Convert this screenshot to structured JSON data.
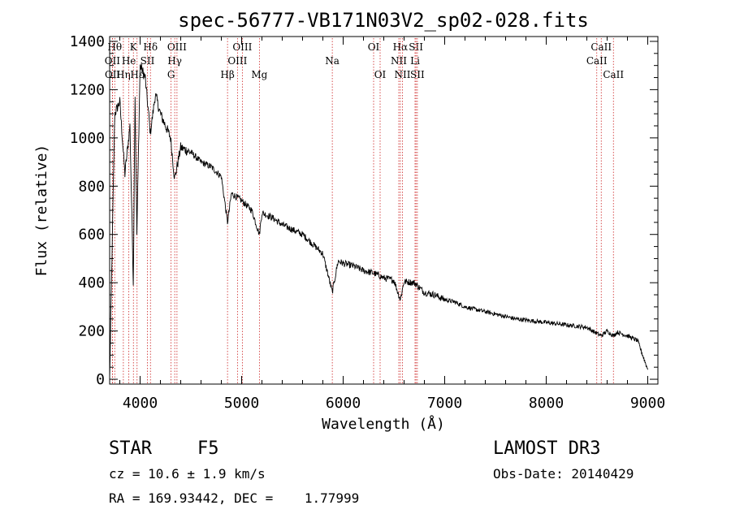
{
  "chart_data": {
    "type": "line",
    "title": "spec-56777-VB171N03V2_sp02-028.fits",
    "xlabel": "Wavelength (Å)",
    "ylabel": "Flux (relative)",
    "xlim": [
      3700,
      9100
    ],
    "ylim": [
      -20,
      1420
    ],
    "xticks": [
      4000,
      5000,
      6000,
      7000,
      8000,
      9000
    ],
    "yticks": [
      0,
      200,
      400,
      600,
      800,
      1000,
      1200,
      1400
    ],
    "grid": false,
    "x": [
      3700,
      3750,
      3800,
      3850,
      3900,
      3933,
      3950,
      3968,
      4000,
      4050,
      4101,
      4150,
      4200,
      4250,
      4300,
      4340,
      4400,
      4500,
      4600,
      4700,
      4800,
      4861,
      4900,
      5000,
      5100,
      5175,
      5200,
      5300,
      5400,
      5500,
      5600,
      5700,
      5800,
      5893,
      5950,
      6000,
      6100,
      6200,
      6300,
      6400,
      6500,
      6563,
      6600,
      6700,
      6800,
      6900,
      7000,
      7100,
      7200,
      7300,
      7400,
      7500,
      7600,
      7700,
      7800,
      7900,
      8000,
      8100,
      8200,
      8300,
      8400,
      8498,
      8542,
      8600,
      8662,
      8700,
      8800,
      8900,
      8950,
      9000
    ],
    "y": [
      0,
      1100,
      1150,
      850,
      1050,
      400,
      1180,
      600,
      1300,
      1250,
      1020,
      1180,
      1100,
      1050,
      1000,
      830,
      960,
      940,
      900,
      880,
      840,
      650,
      770,
      740,
      700,
      600,
      690,
      670,
      640,
      620,
      600,
      560,
      520,
      360,
      490,
      480,
      470,
      450,
      440,
      420,
      410,
      330,
      405,
      400,
      360,
      350,
      330,
      320,
      300,
      290,
      280,
      270,
      260,
      250,
      245,
      240,
      235,
      230,
      225,
      220,
      215,
      190,
      180,
      200,
      180,
      195,
      180,
      160,
      100,
      40
    ],
    "lines": [
      {
        "label": "Hθ",
        "x": 3750,
        "row": 0
      },
      {
        "label": "OII",
        "x": 3727,
        "row": 1
      },
      {
        "label": "OII",
        "x": 3729,
        "row": 2
      },
      {
        "label": "Hη",
        "x": 3835,
        "row": 2
      },
      {
        "label": "He",
        "x": 3889,
        "row": 1
      },
      {
        "label": "K",
        "x": 3934,
        "row": 0
      },
      {
        "label": "SII",
        "x": 4072,
        "row": 1
      },
      {
        "label": "Hε",
        "x": 3970,
        "row": 2
      },
      {
        "label": "Hδ",
        "x": 4102,
        "row": 0
      },
      {
        "label": "OIII",
        "x": 4363,
        "row": 0
      },
      {
        "label": "Hγ",
        "x": 4341,
        "row": 1
      },
      {
        "label": "G",
        "x": 4305,
        "row": 2
      },
      {
        "label": "Hβ",
        "x": 4861,
        "row": 2
      },
      {
        "label": "OIII",
        "x": 5007,
        "row": 0
      },
      {
        "label": "OIII",
        "x": 4959,
        "row": 1
      },
      {
        "label": "Mg",
        "x": 5175,
        "row": 2
      },
      {
        "label": "Na",
        "x": 5893,
        "row": 1
      },
      {
        "label": "OI",
        "x": 6300,
        "row": 0
      },
      {
        "label": "OI",
        "x": 6364,
        "row": 2
      },
      {
        "label": "Hα",
        "x": 6563,
        "row": 0
      },
      {
        "label": "NII",
        "x": 6548,
        "row": 1
      },
      {
        "label": "NII",
        "x": 6584,
        "row": 2
      },
      {
        "label": "SII",
        "x": 6717,
        "row": 0
      },
      {
        "label": "Li",
        "x": 6708,
        "row": 1
      },
      {
        "label": "SII",
        "x": 6731,
        "row": 2
      },
      {
        "label": "CaII",
        "x": 8542,
        "row": 0
      },
      {
        "label": "CaII",
        "x": 8498,
        "row": 1
      },
      {
        "label": "CaII",
        "x": 8662,
        "row": 2
      }
    ]
  },
  "info": {
    "object_class": "STAR",
    "subclass": "F5",
    "survey": "LAMOST DR3",
    "redshift": "cz = 10.6 ± 1.9 km/s",
    "obs_date": "Obs-Date: 20140429",
    "coords": "RA = 169.93442, DEC =    1.77999"
  }
}
